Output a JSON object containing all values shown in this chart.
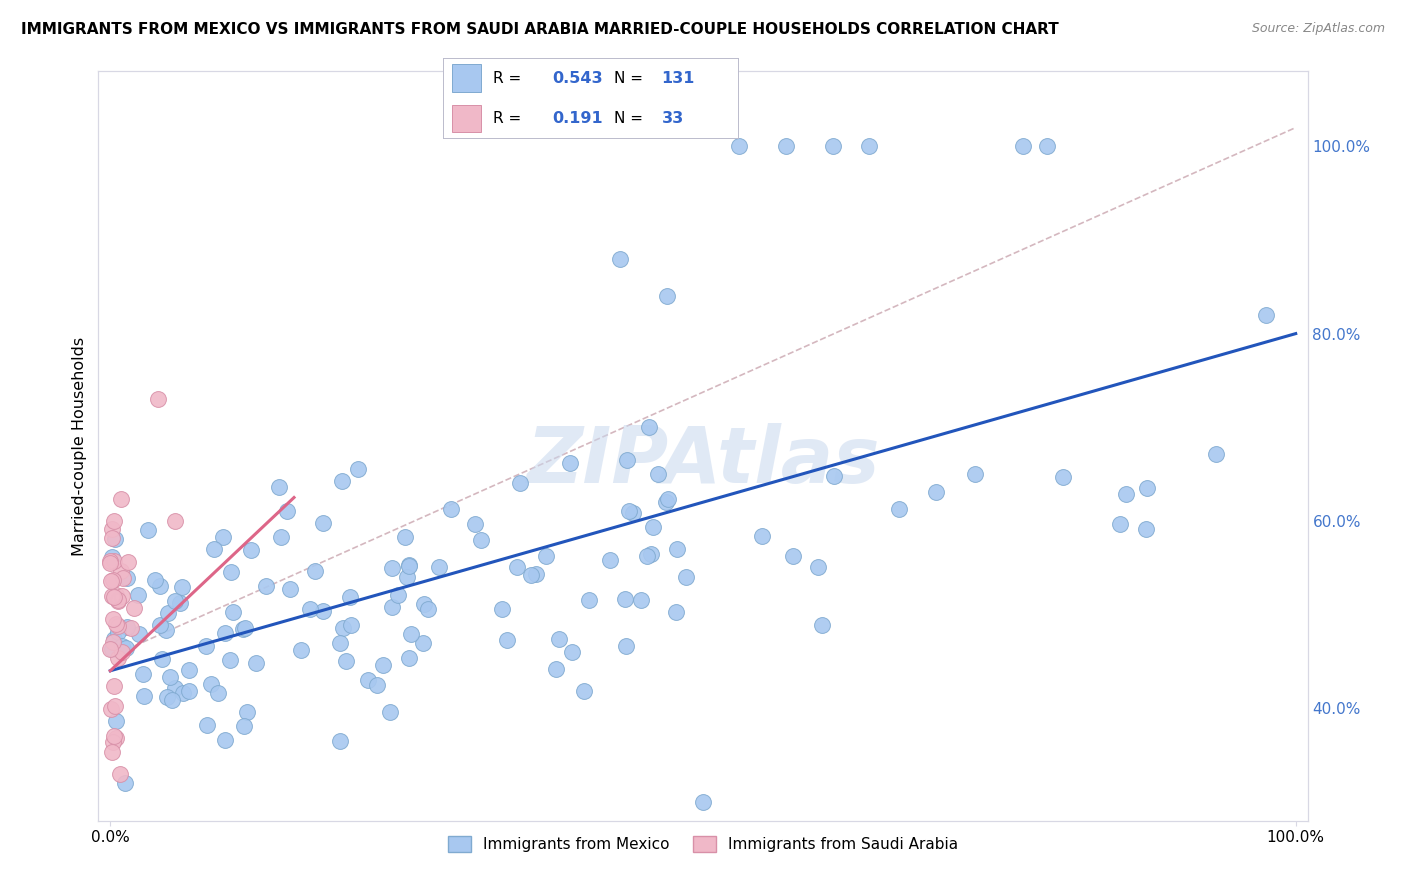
{
  "title": "IMMIGRANTS FROM MEXICO VS IMMIGRANTS FROM SAUDI ARABIA MARRIED-COUPLE HOUSEHOLDS CORRELATION CHART",
  "source": "Source: ZipAtlas.com",
  "ylabel_label": "Married-couple Households",
  "legend_entries": [
    {
      "label": "Immigrants from Mexico",
      "color": "#a8c8f0",
      "R": "0.543",
      "N": "131"
    },
    {
      "label": "Immigrants from Saudi Arabia",
      "color": "#f0b8c8",
      "R": "0.191",
      "N": "33"
    }
  ],
  "watermark": "ZIPAtlas",
  "watermark_color": "#c8d8ee",
  "background_color": "#ffffff",
  "grid_color": "#d8d8e4",
  "scatter_blue_color": "#a8c8f0",
  "scatter_pink_color": "#f0b8c8",
  "scatter_blue_edge": "#80aad0",
  "scatter_pink_edge": "#d890a8",
  "trendline_blue_color": "#2255bb",
  "trendline_pink_color": "#dd6688",
  "trendline_dashed_color": "#d0b0b8",
  "blue_R": 0.543,
  "blue_N": 131,
  "pink_R": 0.191,
  "pink_N": 33,
  "xlim": [
    -0.01,
    1.01
  ],
  "ylim": [
    0.28,
    1.08
  ],
  "right_yticks": [
    0.4,
    0.6,
    0.8,
    1.0
  ],
  "xticks": [
    0.0,
    1.0
  ],
  "seed_blue": 42,
  "seed_pink": 123
}
